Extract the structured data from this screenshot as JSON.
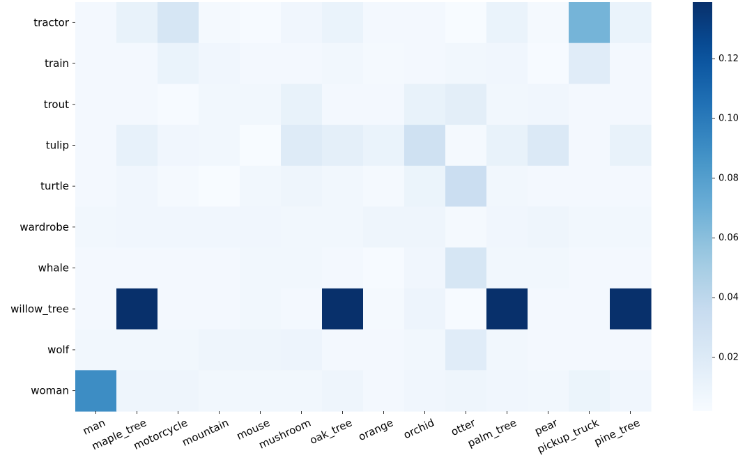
{
  "chart_data": {
    "type": "heatmap",
    "title": "",
    "xlabel": "",
    "ylabel": "",
    "rows": [
      "tractor",
      "train",
      "trout",
      "tulip",
      "turtle",
      "wardrobe",
      "whale",
      "willow_tree",
      "wolf",
      "woman"
    ],
    "columns": [
      "man",
      "maple_tree",
      "motorcycle",
      "mountain",
      "mouse",
      "mushroom",
      "oak_tree",
      "orange",
      "orchid",
      "otter",
      "palm_tree",
      "pear",
      "pickup_truck",
      "pine_tree"
    ],
    "values": [
      [
        0.005,
        0.012,
        0.025,
        0.004,
        0.003,
        0.007,
        0.011,
        0.005,
        0.005,
        0.002,
        0.011,
        0.004,
        0.067,
        0.011
      ],
      [
        0.005,
        0.005,
        0.011,
        0.007,
        0.005,
        0.005,
        0.006,
        0.004,
        0.005,
        0.006,
        0.007,
        0.003,
        0.018,
        0.005
      ],
      [
        0.005,
        0.005,
        0.003,
        0.006,
        0.006,
        0.012,
        0.005,
        0.005,
        0.012,
        0.016,
        0.006,
        0.007,
        0.005,
        0.005
      ],
      [
        0.005,
        0.013,
        0.007,
        0.006,
        0.002,
        0.019,
        0.015,
        0.011,
        0.03,
        0.004,
        0.012,
        0.021,
        0.005,
        0.012
      ],
      [
        0.005,
        0.007,
        0.004,
        0.002,
        0.006,
        0.008,
        0.006,
        0.004,
        0.01,
        0.033,
        0.006,
        0.005,
        0.005,
        0.005
      ],
      [
        0.006,
        0.007,
        0.007,
        0.007,
        0.007,
        0.006,
        0.006,
        0.008,
        0.008,
        0.004,
        0.007,
        0.008,
        0.006,
        0.006
      ],
      [
        0.005,
        0.005,
        0.005,
        0.005,
        0.006,
        0.006,
        0.005,
        0.003,
        0.007,
        0.025,
        0.006,
        0.006,
        0.005,
        0.005
      ],
      [
        0.005,
        0.139,
        0.005,
        0.005,
        0.006,
        0.005,
        0.139,
        0.004,
        0.009,
        0.003,
        0.139,
        0.005,
        0.005,
        0.139
      ],
      [
        0.006,
        0.006,
        0.006,
        0.008,
        0.008,
        0.009,
        0.005,
        0.005,
        0.006,
        0.018,
        0.006,
        0.005,
        0.005,
        0.005
      ],
      [
        0.09,
        0.008,
        0.008,
        0.006,
        0.006,
        0.006,
        0.008,
        0.005,
        0.007,
        0.008,
        0.007,
        0.006,
        0.01,
        0.007
      ]
    ],
    "vmin": 0.002,
    "vmax": 0.139,
    "colormap": "Blues",
    "colorbar": {
      "ticks": [
        0.02,
        0.04,
        0.06,
        0.08,
        0.1,
        0.12
      ],
      "tick_labels": [
        "0.02",
        "0.04",
        "0.06",
        "0.08",
        "0.10",
        "0.12"
      ],
      "placement": "right"
    },
    "grid": false,
    "legend": "none"
  }
}
